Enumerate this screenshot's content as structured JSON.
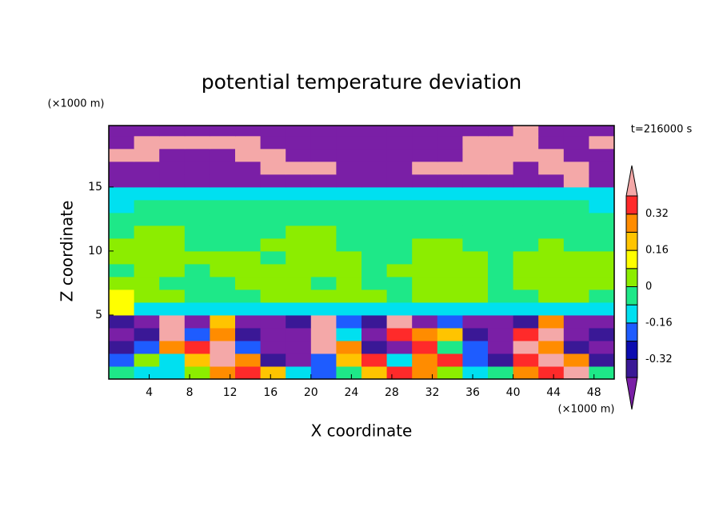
{
  "chart_data": {
    "type": "contour",
    "title": "potential temperature deviation",
    "xlabel": "X coordinate",
    "ylabel": "Z coordinate",
    "x_unit": "(×1000 m)",
    "y_unit": "(×1000 m)",
    "annotation": "t=216000 s",
    "xlim": [
      0,
      50
    ],
    "ylim": [
      0,
      19.8
    ],
    "xticks": [
      4,
      8,
      12,
      16,
      20,
      24,
      28,
      32,
      36,
      40,
      44,
      48
    ],
    "yticks": [
      5,
      10,
      15
    ],
    "x": [
      1.25,
      3.75,
      6.25,
      8.75,
      11.25,
      13.75,
      16.25,
      18.75,
      21.25,
      23.75,
      26.25,
      28.75,
      31.25,
      33.75,
      36.25,
      38.75,
      41.25,
      43.75,
      46.25,
      48.75
    ],
    "y": [
      0.5,
      1.5,
      2.5,
      3.5,
      4.5,
      5.5,
      6.5,
      7.5,
      8.5,
      9.5,
      10.5,
      11.5,
      12.5,
      13.5,
      14.5,
      15.5,
      16.5,
      17.5,
      18.5,
      19.5
    ],
    "z": [
      [
        -0.04,
        -0.12,
        -0.12,
        0.04,
        0.28,
        0.36,
        0.2,
        -0.12,
        -0.2,
        -0.04,
        0.2,
        0.36,
        0.28,
        0.04,
        -0.12,
        -0.04,
        0.28,
        0.36,
        0.5,
        -0.04
      ],
      [
        -0.2,
        0.04,
        -0.12,
        0.2,
        0.5,
        0.28,
        -0.36,
        -0.5,
        -0.2,
        0.2,
        0.36,
        -0.12,
        0.28,
        0.36,
        -0.2,
        -0.36,
        0.36,
        0.5,
        0.28,
        -0.36
      ],
      [
        -0.36,
        -0.2,
        0.28,
        0.36,
        0.5,
        -0.2,
        -0.5,
        -0.5,
        0.5,
        0.28,
        -0.36,
        -0.5,
        0.36,
        -0.04,
        -0.2,
        -0.5,
        0.5,
        0.28,
        -0.36,
        -0.5
      ],
      [
        -0.5,
        -0.36,
        0.5,
        -0.2,
        0.28,
        -0.36,
        -0.5,
        -0.5,
        0.5,
        -0.12,
        -0.5,
        0.36,
        0.28,
        0.2,
        -0.36,
        -0.5,
        0.36,
        0.5,
        -0.5,
        -0.36
      ],
      [
        -0.36,
        -0.5,
        0.5,
        -0.5,
        0.2,
        -0.5,
        -0.5,
        -0.36,
        0.5,
        -0.2,
        -0.36,
        0.5,
        -0.5,
        -0.2,
        -0.5,
        -0.5,
        -0.36,
        0.28,
        -0.5,
        -0.5
      ],
      [
        0.12,
        -0.12,
        -0.12,
        -0.12,
        -0.12,
        -0.12,
        -0.12,
        -0.12,
        -0.12,
        -0.12,
        -0.12,
        -0.12,
        -0.12,
        -0.12,
        -0.12,
        -0.12,
        -0.12,
        -0.12,
        -0.12,
        -0.12
      ],
      [
        0.12,
        0.04,
        0.04,
        -0.04,
        -0.04,
        -0.04,
        0.04,
        0.04,
        0.04,
        0.04,
        0.04,
        -0.04,
        0.04,
        0.04,
        0.04,
        -0.04,
        -0.04,
        0.04,
        0.04,
        -0.04
      ],
      [
        0.04,
        0.04,
        -0.04,
        -0.04,
        -0.04,
        0.04,
        0.04,
        0.04,
        -0.04,
        0.04,
        -0.04,
        -0.04,
        0.04,
        0.04,
        0.04,
        -0.04,
        0.04,
        0.04,
        0.04,
        0.04
      ],
      [
        -0.04,
        0.04,
        0.04,
        -0.04,
        0.04,
        0.04,
        0.04,
        0.04,
        0.04,
        0.04,
        -0.04,
        0.04,
        0.04,
        0.04,
        0.04,
        -0.04,
        0.04,
        0.04,
        0.04,
        0.04
      ],
      [
        0.04,
        0.04,
        0.04,
        0.04,
        0.04,
        0.04,
        -0.04,
        0.04,
        0.04,
        0.04,
        -0.04,
        -0.04,
        0.04,
        0.04,
        0.04,
        -0.04,
        0.04,
        0.04,
        0.04,
        0.04
      ],
      [
        0.04,
        0.04,
        0.04,
        -0.04,
        -0.04,
        -0.04,
        0.04,
        0.04,
        0.04,
        -0.04,
        -0.04,
        -0.04,
        0.04,
        0.04,
        -0.04,
        -0.04,
        -0.04,
        0.04,
        -0.04,
        -0.04
      ],
      [
        -0.04,
        0.04,
        0.04,
        -0.04,
        -0.04,
        -0.04,
        -0.04,
        0.04,
        0.04,
        -0.04,
        -0.04,
        -0.04,
        -0.04,
        -0.04,
        -0.04,
        -0.04,
        -0.04,
        -0.04,
        -0.04,
        -0.04
      ],
      [
        -0.04,
        -0.04,
        -0.04,
        -0.04,
        -0.04,
        -0.04,
        -0.04,
        -0.04,
        -0.04,
        -0.04,
        -0.04,
        -0.04,
        -0.04,
        -0.04,
        -0.04,
        -0.04,
        -0.04,
        -0.04,
        -0.04,
        -0.04
      ],
      [
        -0.12,
        -0.04,
        -0.04,
        -0.04,
        -0.04,
        -0.04,
        -0.04,
        -0.04,
        -0.04,
        -0.04,
        -0.04,
        -0.04,
        -0.04,
        -0.04,
        -0.04,
        -0.04,
        -0.04,
        -0.04,
        -0.04,
        -0.12
      ],
      [
        -0.12,
        -0.12,
        -0.12,
        -0.12,
        -0.12,
        -0.12,
        -0.12,
        -0.12,
        -0.12,
        -0.12,
        -0.12,
        -0.12,
        -0.12,
        -0.12,
        -0.12,
        -0.12,
        -0.12,
        -0.12,
        -0.12,
        -0.12
      ],
      [
        -0.5,
        -0.5,
        -0.5,
        -0.5,
        -0.5,
        -0.5,
        -0.5,
        -0.5,
        -0.5,
        -0.5,
        -0.5,
        -0.5,
        -0.5,
        -0.5,
        -0.5,
        -0.5,
        -0.5,
        -0.5,
        0.5,
        -0.5
      ],
      [
        -0.5,
        -0.5,
        -0.5,
        -0.5,
        -0.5,
        -0.5,
        0.5,
        0.5,
        0.5,
        -0.5,
        -0.5,
        -0.5,
        0.5,
        0.5,
        0.5,
        0.5,
        -0.5,
        0.5,
        0.5,
        -0.5
      ],
      [
        0.5,
        0.5,
        -0.5,
        -0.5,
        -0.5,
        0.5,
        0.5,
        -0.5,
        -0.5,
        -0.5,
        -0.5,
        -0.5,
        -0.5,
        -0.5,
        0.5,
        0.5,
        0.5,
        0.5,
        -0.5,
        -0.5
      ],
      [
        -0.5,
        0.5,
        0.5,
        0.5,
        0.5,
        0.5,
        -0.5,
        -0.5,
        -0.5,
        -0.5,
        -0.5,
        -0.5,
        -0.5,
        -0.5,
        0.5,
        0.5,
        0.5,
        -0.5,
        -0.5,
        0.5
      ],
      [
        -0.5,
        -0.5,
        -0.5,
        -0.5,
        -0.5,
        -0.5,
        -0.5,
        -0.5,
        -0.5,
        -0.5,
        -0.5,
        -0.5,
        -0.5,
        -0.5,
        -0.5,
        -0.5,
        0.5,
        -0.5,
        -0.5,
        -0.5
      ]
    ],
    "levels": [
      -0.4,
      -0.32,
      -0.24,
      -0.16,
      -0.08,
      0,
      0.08,
      0.16,
      0.24,
      0.32,
      0.4
    ],
    "colors": [
      "#7a1fa6",
      "#3a1896",
      "#0c0cb0",
      "#1e5cff",
      "#00e0f0",
      "#1ee888",
      "#8ced00",
      "#ffff00",
      "#ffc400",
      "#ff8c00",
      "#ff2a2a",
      "#f4a8a8"
    ],
    "colorbar_ticks": [
      -0.32,
      -0.16,
      0,
      0.16,
      0.32
    ]
  }
}
